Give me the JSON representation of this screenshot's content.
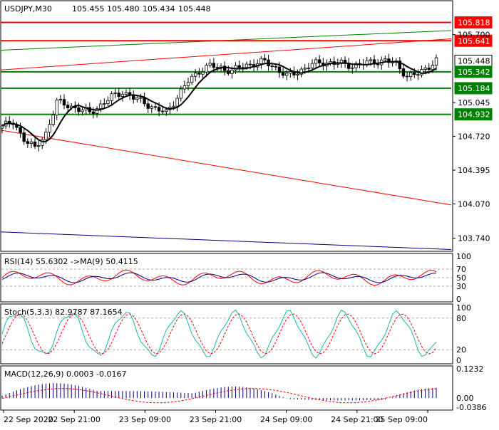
{
  "chart_data": {
    "type": "candlestick",
    "symbol_header": "USDJPY,M30",
    "ohlc": [
      "105.455",
      "105.480",
      "105.434",
      "105.448"
    ],
    "price_scale": {
      "ylim": [
        103.62,
        106.02
      ],
      "ticks": [
        "105.700",
        "105.045",
        "104.720",
        "104.395",
        "104.070",
        "103.740"
      ]
    },
    "price_tags": [
      {
        "value": 105.818,
        "label": "105.818",
        "kind": "resistance",
        "color": "#ff0000"
      },
      {
        "value": 105.641,
        "label": "105.641",
        "kind": "resistance",
        "color": "#ff0000"
      },
      {
        "value": 105.448,
        "label": "105.448",
        "kind": "current",
        "color": "#ffffff"
      },
      {
        "value": 105.342,
        "label": "105.342",
        "kind": "support",
        "color": "#008000"
      },
      {
        "value": 105.184,
        "label": "105.184",
        "kind": "support",
        "color": "#008000"
      },
      {
        "value": 104.932,
        "label": "104.932",
        "kind": "support",
        "color": "#008000"
      }
    ],
    "trendlines": [
      {
        "color": "#008000",
        "from": [
          0,
          105.55
        ],
        "to": [
          1,
          105.74
        ]
      },
      {
        "color": "#ff0000",
        "from": [
          0,
          105.36
        ],
        "to": [
          1,
          105.66
        ]
      },
      {
        "color": "#ff0000",
        "from": [
          0,
          104.78
        ],
        "to": [
          1,
          104.06
        ]
      },
      {
        "color": "#000080",
        "from": [
          0,
          103.8
        ],
        "to": [
          1,
          103.63
        ]
      }
    ],
    "close_anchors": [
      [
        0,
        104.82
      ],
      [
        3,
        104.85
      ],
      [
        6,
        104.7
      ],
      [
        9,
        104.6
      ],
      [
        12,
        104.75
      ],
      [
        15,
        105.05
      ],
      [
        18,
        105.02
      ],
      [
        21,
        104.98
      ],
      [
        24,
        104.95
      ],
      [
        27,
        105.02
      ],
      [
        30,
        105.1
      ],
      [
        33,
        105.15
      ],
      [
        36,
        105.09
      ],
      [
        39,
        105.05
      ],
      [
        42,
        104.98
      ],
      [
        45,
        104.95
      ],
      [
        48,
        105.1
      ],
      [
        51,
        105.25
      ],
      [
        54,
        105.35
      ],
      [
        57,
        105.4
      ],
      [
        60,
        105.38
      ],
      [
        63,
        105.35
      ],
      [
        66,
        105.4
      ],
      [
        69,
        105.42
      ],
      [
        72,
        105.44
      ],
      [
        75,
        105.38
      ],
      [
        78,
        105.3
      ],
      [
        81,
        105.34
      ],
      [
        84,
        105.4
      ],
      [
        87,
        105.43
      ],
      [
        90,
        105.43
      ],
      [
        93,
        105.42
      ],
      [
        96,
        105.4
      ],
      [
        99,
        105.42
      ],
      [
        102,
        105.44
      ],
      [
        105,
        105.45
      ],
      [
        108,
        105.42
      ],
      [
        111,
        105.3
      ],
      [
        114,
        105.32
      ],
      [
        117,
        105.4
      ],
      [
        119,
        105.45
      ]
    ],
    "indicators": {
      "rsi": {
        "label": "RSI(14) 55.6302  ->MA(9) 50.4115",
        "scale": [
          "100",
          "70",
          "50",
          "30",
          "0"
        ]
      },
      "stoch": {
        "label": "Stoch(5,3,3) 82.9787 87.1654",
        "scale": [
          "100",
          "80",
          "20",
          "0"
        ]
      },
      "macd": {
        "label": "MACD(12,26,9) 0.0003 -0.0167",
        "scale": [
          "0.1232",
          "0.00",
          "-0.0386"
        ]
      }
    },
    "time_labels": [
      "22 Sep 2020",
      "22 Sep 21:00",
      "23 Sep 09:00",
      "23 Sep 21:00",
      "24 Sep 09:00",
      "24 Sep 21:00",
      "25 Sep 09:00"
    ]
  },
  "colors": {
    "up_candle": "#ffffff",
    "down_candle": "#000000",
    "ma": "#000000",
    "rsi_line": "#ff0000",
    "rsi_ma": "#000080",
    "stoch_main": "#20b2aa",
    "stoch_signal": "#ff0000",
    "macd_hist": "#000080",
    "macd_signal": "#ff0000"
  }
}
